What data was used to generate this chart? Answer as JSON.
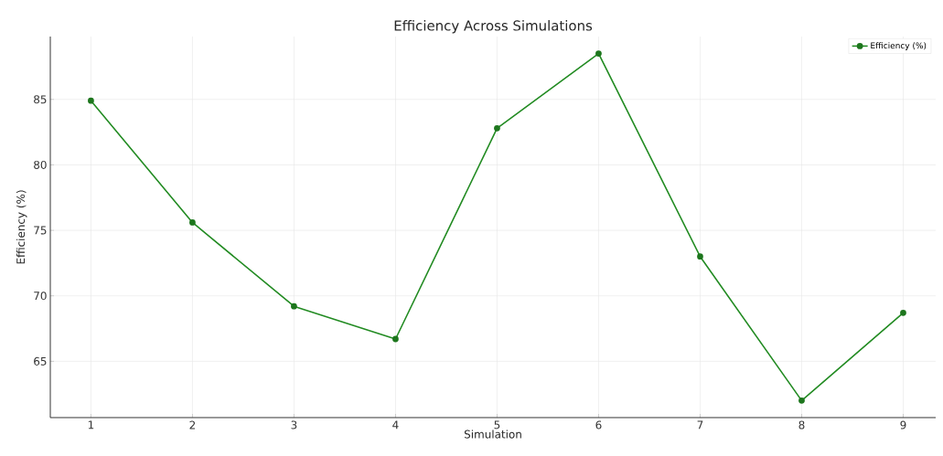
{
  "chart_data": {
    "type": "line",
    "title": "Efficiency Across Simulations",
    "xlabel": "Simulation",
    "ylabel": "Efficiency (%)",
    "x": [
      1,
      2,
      3,
      4,
      5,
      6,
      7,
      8,
      9
    ],
    "series": [
      {
        "name": "Efficiency (%)",
        "color": "#228b22",
        "values": [
          84.9,
          75.6,
          69.2,
          66.7,
          82.8,
          88.5,
          73.0,
          62.0,
          68.7
        ]
      }
    ],
    "xlim": [
      0.6,
      9.32
    ],
    "ylim": [
      60.7,
      89.8
    ],
    "xticks": [
      1,
      2,
      3,
      4,
      5,
      6,
      7,
      8,
      9
    ],
    "yticks": [
      65,
      70,
      75,
      80,
      85
    ],
    "grid": true,
    "legend": "top right",
    "marker": "circle",
    "line_style": "solid"
  }
}
